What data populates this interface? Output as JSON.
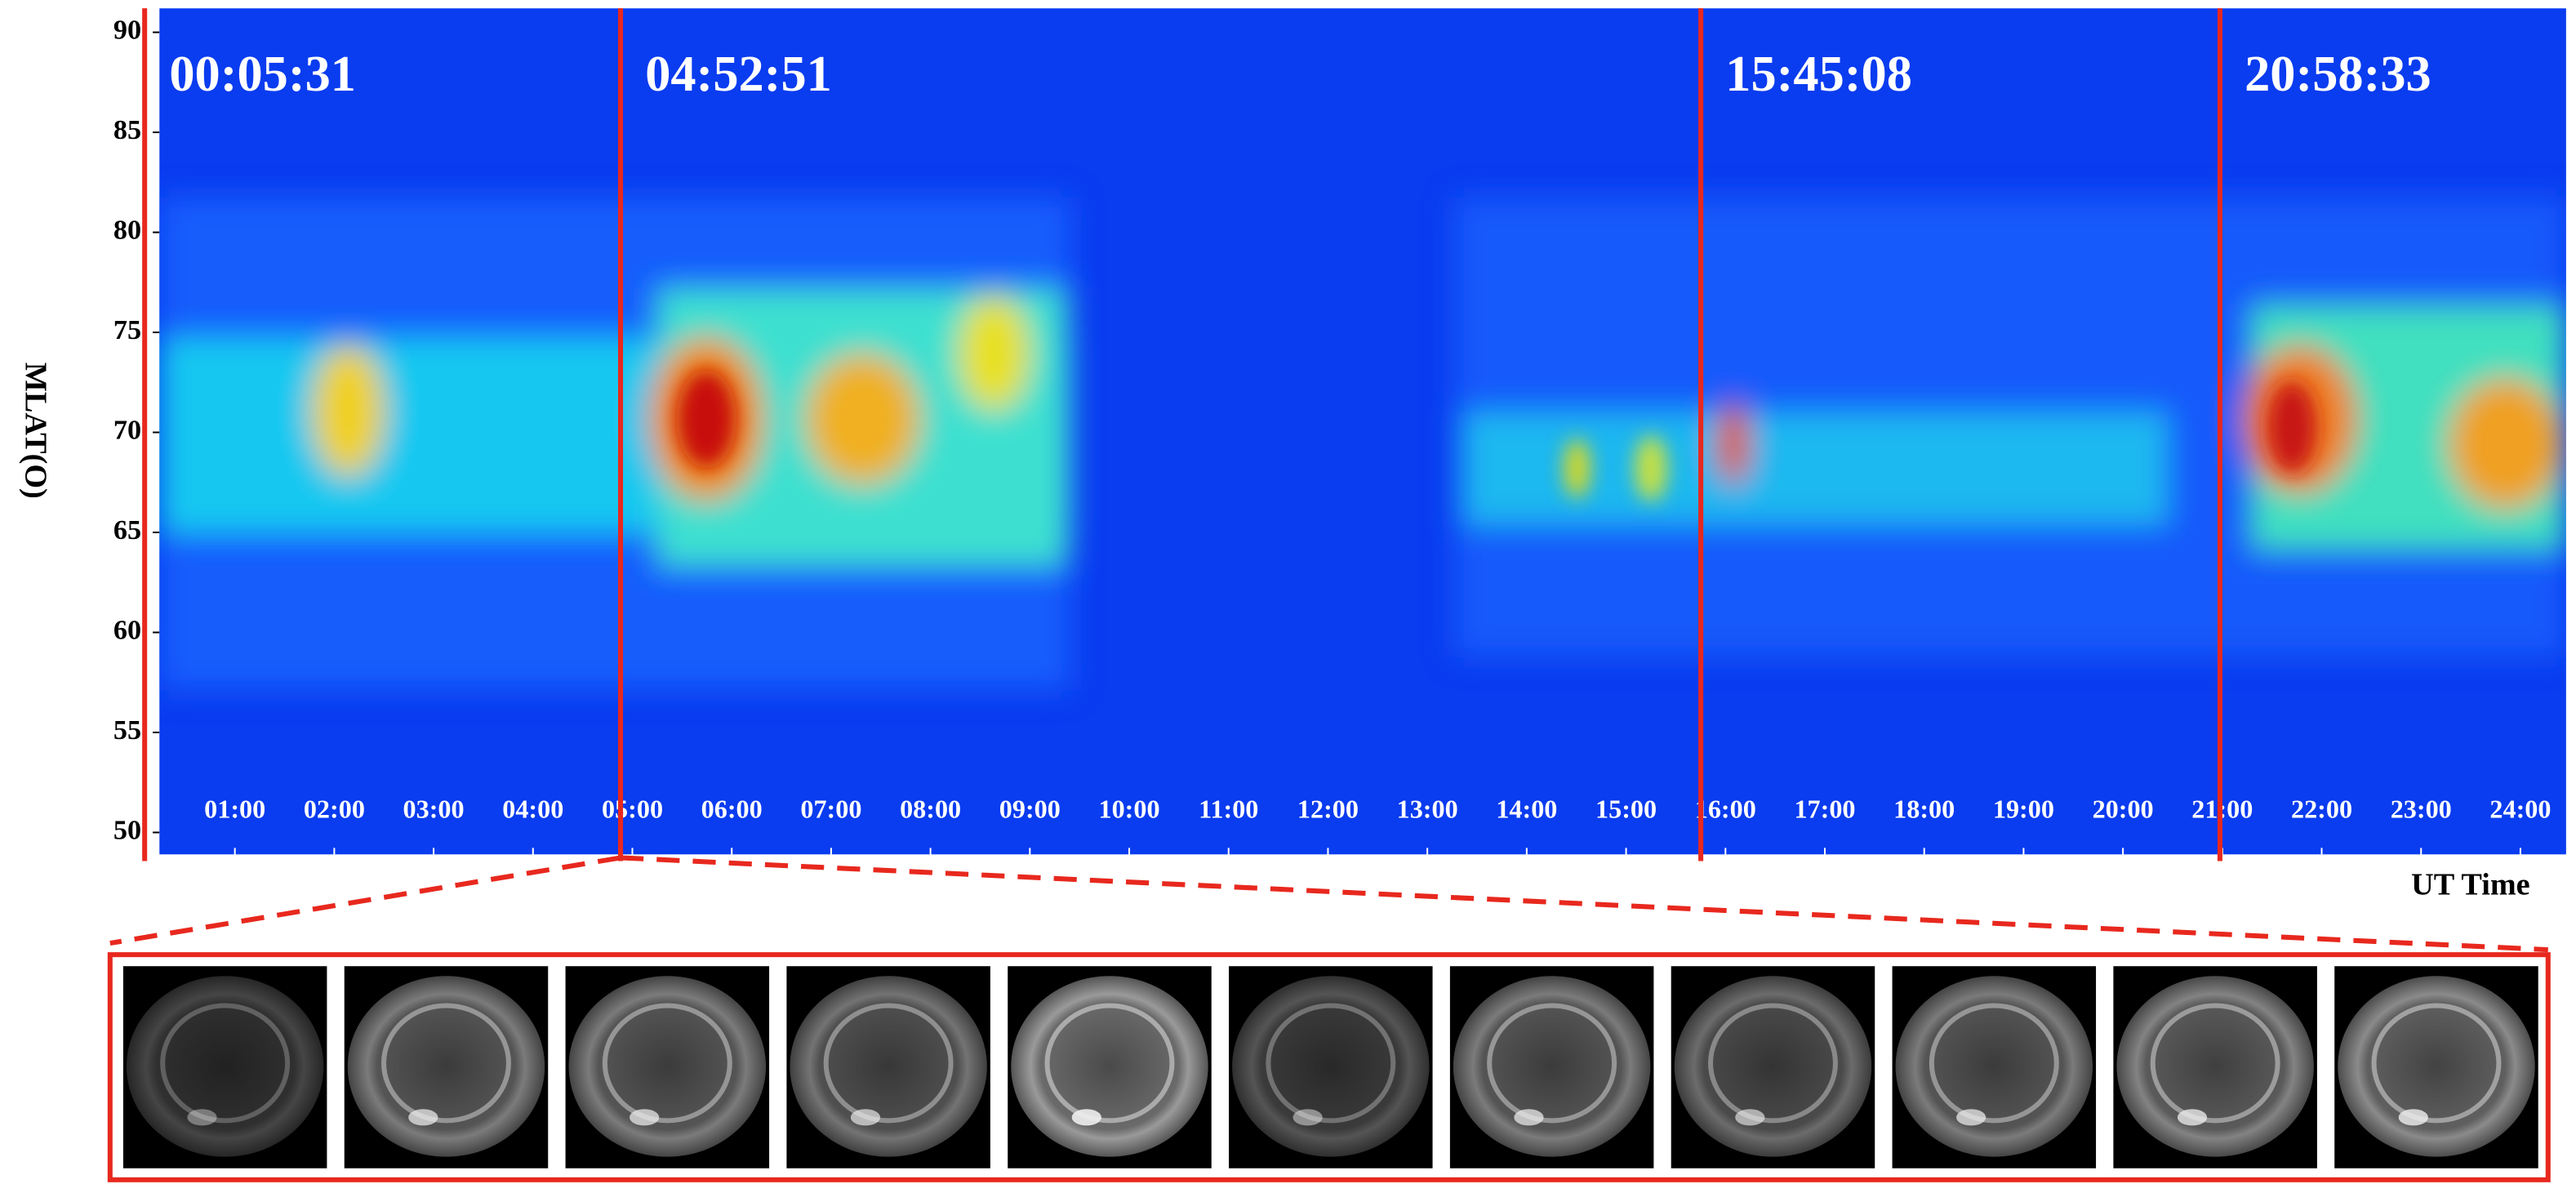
{
  "chart_data": {
    "type": "keogram",
    "y_label": "MLAT(O)",
    "x_label": "UT Time",
    "xlim": [
      0.24,
      24.46
    ],
    "ylim": [
      48.9,
      91.2
    ],
    "yticks": [
      50,
      55,
      60,
      65,
      70,
      75,
      80,
      85,
      90
    ],
    "xticks": [
      {
        "value": 1,
        "label": "01:00"
      },
      {
        "value": 2,
        "label": "02:00"
      },
      {
        "value": 3,
        "label": "03:00"
      },
      {
        "value": 4,
        "label": "04:00"
      },
      {
        "value": 5,
        "label": "05:00"
      },
      {
        "value": 6,
        "label": "06:00"
      },
      {
        "value": 7,
        "label": "07:00"
      },
      {
        "value": 8,
        "label": "08:00"
      },
      {
        "value": 9,
        "label": "09:00"
      },
      {
        "value": 10,
        "label": "10:00"
      },
      {
        "value": 11,
        "label": "11:00"
      },
      {
        "value": 12,
        "label": "12:00"
      },
      {
        "value": 13,
        "label": "13:00"
      },
      {
        "value": 14,
        "label": "14:00"
      },
      {
        "value": 15,
        "label": "15:00"
      },
      {
        "value": 16,
        "label": "16:00"
      },
      {
        "value": 17,
        "label": "17:00"
      },
      {
        "value": 18,
        "label": "18:00"
      },
      {
        "value": 19,
        "label": "19:00"
      },
      {
        "value": 20,
        "label": "20:00"
      },
      {
        "value": 21,
        "label": "21:00"
      },
      {
        "value": 22,
        "label": "22:00"
      },
      {
        "value": 23,
        "label": "23:00"
      },
      {
        "value": 24,
        "label": "24:00"
      }
    ],
    "events": [
      {
        "label": "00:05:31",
        "x": 0.092
      },
      {
        "label": "04:52:51",
        "x": 4.881
      },
      {
        "label": "15:45:08",
        "x": 15.752
      },
      {
        "label": "20:58:33",
        "x": 20.976
      }
    ],
    "event_color": "#e8281e"
  }
}
